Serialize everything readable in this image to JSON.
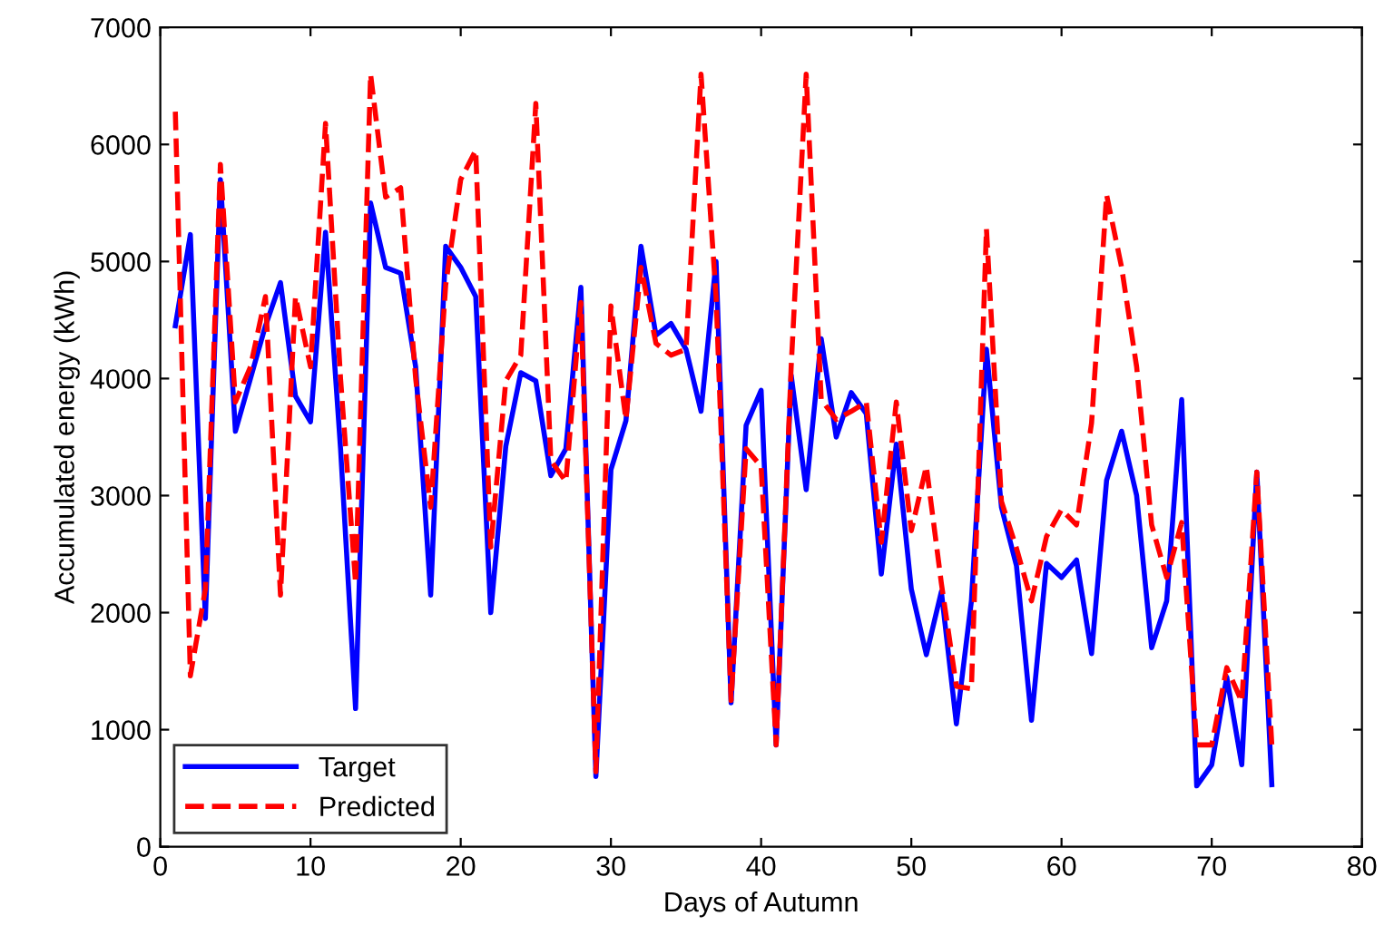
{
  "chart_data": {
    "type": "line",
    "xlabel": "Days of Autumn",
    "ylabel": "Accumulated energy (kWh)",
    "x": [
      1,
      2,
      3,
      4,
      5,
      6,
      7,
      8,
      9,
      10,
      11,
      12,
      13,
      14,
      15,
      16,
      17,
      18,
      19,
      20,
      21,
      22,
      23,
      24,
      25,
      26,
      27,
      28,
      29,
      30,
      31,
      32,
      33,
      34,
      35,
      36,
      37,
      38,
      39,
      40,
      41,
      42,
      43,
      44,
      45,
      46,
      47,
      48,
      49,
      50,
      51,
      52,
      53,
      54,
      55,
      56,
      57,
      58,
      59,
      60,
      61,
      62,
      63,
      64,
      65,
      66,
      67,
      68,
      69,
      70,
      71,
      72,
      73,
      74
    ],
    "series": [
      {
        "name": "Target",
        "color": "#0000ff",
        "line_style": "solid",
        "values": [
          4450,
          5230,
          1950,
          5700,
          3550,
          4000,
          4450,
          4820,
          3850,
          3630,
          5250,
          3400,
          1180,
          5500,
          4950,
          4900,
          4100,
          2150,
          5130,
          4950,
          4700,
          2000,
          3420,
          4050,
          3980,
          3170,
          3400,
          4780,
          600,
          3220,
          3640,
          5130,
          4370,
          4470,
          4250,
          3720,
          5000,
          1230,
          3600,
          3900,
          870,
          4030,
          3050,
          4340,
          3500,
          3880,
          3700,
          2330,
          3440,
          2200,
          1640,
          2180,
          1050,
          2100,
          4250,
          2900,
          2400,
          1080,
          2420,
          2300,
          2450,
          1650,
          3130,
          3550,
          3000,
          1700,
          2100,
          3820,
          520,
          700,
          1450,
          700,
          3200,
          530
        ]
      },
      {
        "name": "Predicted",
        "color": "#ff0000",
        "line_style": "dashed",
        "values": [
          6280,
          1460,
          2200,
          5830,
          3800,
          4100,
          4700,
          2150,
          4700,
          4100,
          6180,
          4000,
          2250,
          6600,
          5550,
          5630,
          4000,
          2900,
          4800,
          5700,
          5950,
          2560,
          3980,
          4200,
          6350,
          3300,
          3120,
          4650,
          640,
          4620,
          3650,
          4950,
          4300,
          4200,
          4250,
          6600,
          4700,
          1250,
          3400,
          3250,
          870,
          4100,
          6600,
          3820,
          3650,
          3720,
          3800,
          2600,
          3800,
          2700,
          3250,
          2250,
          1370,
          1350,
          5280,
          2950,
          2550,
          2100,
          2650,
          2880,
          2750,
          3620,
          5570,
          4950,
          4100,
          2750,
          2300,
          2770,
          870,
          870,
          1530,
          1240,
          3200,
          870
        ]
      }
    ],
    "xlim": [
      0,
      80
    ],
    "xticks": [
      0,
      10,
      20,
      30,
      40,
      50,
      60,
      70,
      80
    ],
    "ylim": [
      0,
      7000
    ],
    "yticks": [
      0,
      1000,
      2000,
      3000,
      4000,
      5000,
      6000,
      7000
    ],
    "legend": "bottom left"
  }
}
